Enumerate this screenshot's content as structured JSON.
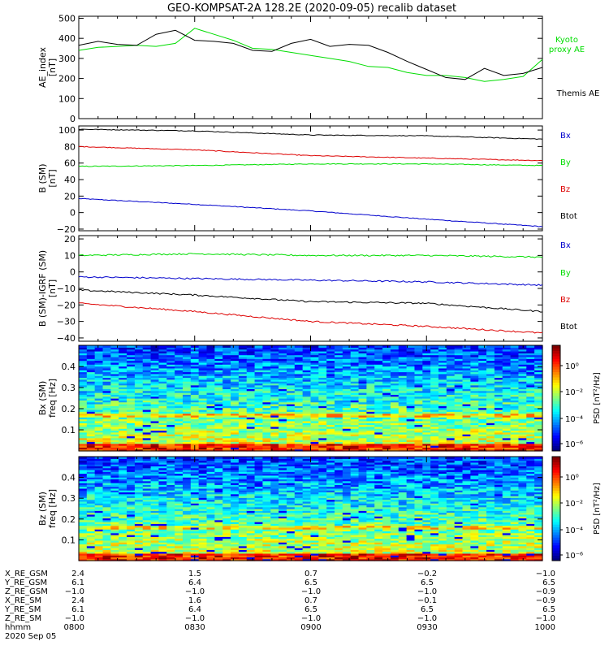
{
  "title": "GEO-KOMPSAT-2A 128.2E (2020-09-05) recalib dataset",
  "colors": {
    "black": "#000000",
    "green": "#00dd00",
    "blue": "#0000cc",
    "red": "#dd0000"
  },
  "chart_data": [
    {
      "type": "line",
      "ylabel": "AE_index\n[nT]",
      "ylim": [
        0,
        510
      ],
      "yticks": [
        0,
        100,
        200,
        300,
        400,
        500
      ],
      "xlim": [
        "08:00",
        "10:00"
      ],
      "grid": false,
      "legend": "right",
      "series": [
        {
          "name": "Kyoto\nproxy AE",
          "color": "#00dd00",
          "x": [
            "08:00",
            "08:05",
            "08:10",
            "08:15",
            "08:20",
            "08:25",
            "08:30",
            "08:35",
            "08:40",
            "08:45",
            "08:50",
            "08:55",
            "09:00",
            "09:05",
            "09:10",
            "09:15",
            "09:20",
            "09:25",
            "09:30",
            "09:35",
            "09:40",
            "09:45",
            "09:50",
            "09:55",
            "10:00"
          ],
          "values": [
            340,
            355,
            360,
            365,
            360,
            375,
            450,
            420,
            390,
            350,
            345,
            330,
            315,
            300,
            285,
            260,
            255,
            230,
            215,
            215,
            205,
            185,
            195,
            210,
            295
          ]
        },
        {
          "name": "Themis AE",
          "color": "#000000",
          "x": [
            "08:00",
            "08:05",
            "08:10",
            "08:15",
            "08:20",
            "08:25",
            "08:30",
            "08:35",
            "08:40",
            "08:45",
            "08:50",
            "08:55",
            "09:00",
            "09:05",
            "09:10",
            "09:15",
            "09:20",
            "09:25",
            "09:30",
            "09:35",
            "09:40",
            "09:45",
            "09:50",
            "09:55",
            "10:00"
          ],
          "values": [
            365,
            385,
            370,
            365,
            420,
            440,
            390,
            385,
            375,
            340,
            335,
            375,
            395,
            360,
            370,
            365,
            330,
            285,
            245,
            205,
            195,
            250,
            215,
            225,
            255
          ]
        }
      ]
    },
    {
      "type": "line",
      "ylabel": "B (SM)\n[nT]",
      "ylim": [
        -22,
        105
      ],
      "yticks": [
        -20,
        0,
        20,
        40,
        60,
        80,
        100
      ],
      "xlim": [
        "08:00",
        "10:00"
      ],
      "legend": "right",
      "series": [
        {
          "name": "Bx",
          "color": "#0000cc",
          "x": [
            "08:00",
            "08:30",
            "09:00",
            "09:30",
            "10:00"
          ],
          "values": [
            17,
            10,
            2,
            -8,
            -17
          ]
        },
        {
          "name": "By",
          "color": "#00dd00",
          "x": [
            "08:00",
            "08:30",
            "09:00",
            "09:30",
            "10:00"
          ],
          "values": [
            56,
            57,
            59,
            59,
            57
          ]
        },
        {
          "name": "Bz",
          "color": "#dd0000",
          "x": [
            "08:00",
            "08:30",
            "09:00",
            "09:30",
            "10:00"
          ],
          "values": [
            80,
            76,
            69,
            66,
            63
          ]
        },
        {
          "name": "Btot",
          "color": "#000000",
          "x": [
            "08:00",
            "08:30",
            "09:00",
            "09:30",
            "10:00"
          ],
          "values": [
            101,
            99,
            94,
            93,
            89
          ]
        }
      ]
    },
    {
      "type": "line",
      "ylabel": "B (SM)-IGRF (SM)\n[nT]",
      "ylim": [
        -42,
        22
      ],
      "yticks": [
        -40,
        -30,
        -20,
        -10,
        0,
        10,
        20
      ],
      "xlim": [
        "08:00",
        "10:00"
      ],
      "legend": "right",
      "series": [
        {
          "name": "Bx",
          "color": "#0000cc",
          "x": [
            "08:00",
            "08:30",
            "09:00",
            "09:30",
            "10:00"
          ],
          "values": [
            -3,
            -4,
            -5,
            -6,
            -8
          ]
        },
        {
          "name": "By",
          "color": "#00dd00",
          "x": [
            "08:00",
            "08:30",
            "09:00",
            "09:30",
            "10:00"
          ],
          "values": [
            10,
            11,
            10,
            10,
            9
          ]
        },
        {
          "name": "Bz",
          "color": "#dd0000",
          "x": [
            "08:00",
            "08:30",
            "09:00",
            "09:30",
            "10:00"
          ],
          "values": [
            -19,
            -24,
            -30,
            -33,
            -37
          ]
        },
        {
          "name": "Btot",
          "color": "#000000",
          "x": [
            "08:00",
            "08:30",
            "09:00",
            "09:30",
            "10:00"
          ],
          "values": [
            -11,
            -14,
            -18,
            -19,
            -24
          ]
        }
      ]
    },
    {
      "type": "heatmap",
      "ylabel": "Bx (SM)\nfreq [Hz]",
      "ylim": [
        0,
        0.5
      ],
      "yticks": [
        0.1,
        0.2,
        0.3,
        0.4
      ],
      "xlim": [
        "08:00",
        "10:00"
      ],
      "colorbar": {
        "label": "PSD [nT²/Hz]",
        "ticks": [
          "10⁰",
          "10⁻²",
          "10⁻⁴",
          "10⁻⁶"
        ],
        "scale": "log"
      }
    },
    {
      "type": "heatmap",
      "ylabel": "Bz (SM)\nfreq [Hz]",
      "ylim": [
        0,
        0.5
      ],
      "yticks": [
        0.1,
        0.2,
        0.3,
        0.4
      ],
      "xlim": [
        "08:00",
        "10:00"
      ],
      "colorbar": {
        "label": "PSD [nT²/Hz]",
        "ticks": [
          "10⁰",
          "10⁻²",
          "10⁻⁴",
          "10⁻⁶"
        ],
        "scale": "log"
      }
    }
  ],
  "ephemeris": {
    "rows": [
      {
        "label": "X_RE_GSM",
        "values": [
          "2.4",
          "1.5",
          "0.7",
          "-0.2",
          "-1.0"
        ]
      },
      {
        "label": "Y_RE_GSM",
        "values": [
          "6.1",
          "6.4",
          "6.5",
          "6.5",
          "6.5"
        ]
      },
      {
        "label": "Z_RE_GSM",
        "values": [
          "-1.0",
          "-1.0",
          "-1.0",
          "-1.0",
          "-0.9"
        ]
      },
      {
        "label": "X_RE_SM",
        "values": [
          "2.4",
          "1.6",
          "0.7",
          "-0.1",
          "-0.9"
        ]
      },
      {
        "label": "Y_RE_SM",
        "values": [
          "6.1",
          "6.4",
          "6.5",
          "6.5",
          "6.5"
        ]
      },
      {
        "label": "Z_RE_SM",
        "values": [
          "-1.0",
          "-1.0",
          "-1.0",
          "-1.0",
          "-1.0"
        ]
      },
      {
        "label": "hhmm",
        "values": [
          "0800",
          "0830",
          "0900",
          "0930",
          "1000"
        ]
      }
    ],
    "date": "2020 Sep 05"
  }
}
